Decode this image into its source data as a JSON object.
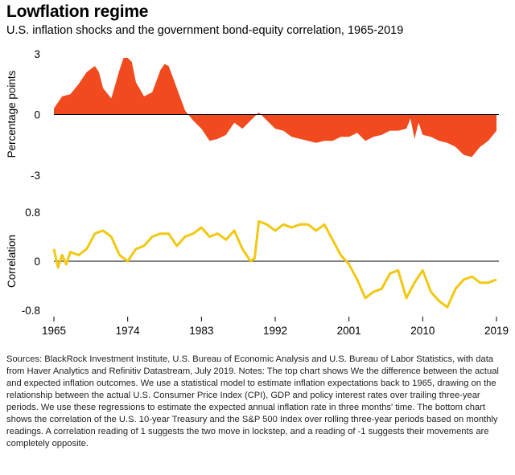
{
  "header": {
    "title": "Lowflation regime",
    "subtitle": "U.S. inflation shocks and the government bond-equity correlation, 1965-2019"
  },
  "notes": "Sources: BlackRock Investment Institute, U.S. Bureau of Economic Analysis and U.S. Bureau of Labor Statistics, with data from Haver Analytics and Refinitiv Datastream, July 2019. Notes: The top  chart shows We the difference between the actual and expected inflation outcomes. We use a statistical model to estimate inflation expectations back to 1965, drawing on the relationship between the actual U.S. Consumer Price Index (CPI), GDP and policy interest rates over trailing three-year periods. We use these regressions to estimate the expected annual inflation rate in three months' time. The bottom chart shows the correlation of the U.S. 10-year Treasury and the S&P 500 Index over rolling three-year periods based on monthly readings. A correlation reading of 1 suggests the two move in lockstep, and a reading of -1 suggests their movements are completely opposite.",
  "colors": {
    "inflation_fill": "#f04a1e",
    "correlation_line": "#f2c811",
    "zero_line": "#000000"
  },
  "chart_data": [
    {
      "type": "area",
      "ylabel": "Percentage points",
      "ylim": [
        -3,
        3
      ],
      "yticks": [
        "3",
        "0",
        "-3"
      ],
      "grid": false,
      "x": [
        1965,
        1966,
        1967,
        1968,
        1969,
        1970,
        1970.5,
        1971,
        1972,
        1973,
        1973.5,
        1974,
        1974.5,
        1975,
        1976,
        1977,
        1978,
        1978.5,
        1979,
        1980,
        1981,
        1982,
        1983,
        1984,
        1985,
        1986,
        1987,
        1988,
        1989,
        1990,
        1991,
        1992,
        1993,
        1994,
        1995,
        1996,
        1997,
        1998,
        1999,
        2000,
        2001,
        2002,
        2003,
        2004,
        2005,
        2006,
        2007,
        2008,
        2008.5,
        2009,
        2009.5,
        2010,
        2011,
        2012,
        2013,
        2014,
        2015,
        2016,
        2017,
        2018,
        2019
      ],
      "values": [
        0.3,
        0.9,
        1.0,
        1.5,
        2.1,
        2.4,
        2.1,
        1.3,
        0.8,
        2.2,
        2.8,
        2.8,
        2.6,
        1.6,
        0.9,
        1.1,
        2.2,
        2.5,
        2.4,
        1.3,
        0.2,
        -0.3,
        -0.7,
        -1.3,
        -1.2,
        -1.0,
        -0.4,
        -0.7,
        -0.3,
        0.1,
        -0.3,
        -0.7,
        -0.8,
        -1.1,
        -1.2,
        -1.3,
        -1.4,
        -1.3,
        -1.3,
        -1.1,
        -1.1,
        -0.9,
        -1.3,
        -1.1,
        -1.0,
        -0.8,
        -0.8,
        -0.7,
        -0.2,
        -1.2,
        -0.4,
        -1.0,
        -1.1,
        -1.3,
        -1.4,
        -1.6,
        -2.0,
        -2.1,
        -1.6,
        -1.3,
        -0.8
      ]
    },
    {
      "type": "line",
      "ylabel": "Correlation",
      "ylim": [
        -0.8,
        0.8
      ],
      "yticks": [
        "0.8",
        "0",
        "-0.8"
      ],
      "grid": false,
      "xticks": [
        "1965",
        "1974",
        "1983",
        "1992",
        "2001",
        "2010",
        "2019"
      ],
      "x": [
        1965,
        1965.5,
        1966,
        1966.5,
        1967,
        1968,
        1969,
        1970,
        1971,
        1972,
        1973,
        1974,
        1975,
        1976,
        1977,
        1978,
        1979,
        1980,
        1981,
        1982,
        1983,
        1984,
        1985,
        1986,
        1987,
        1988,
        1989,
        1989.5,
        1990,
        1991,
        1992,
        1993,
        1994,
        1995,
        1996,
        1997,
        1998,
        1999,
        2000,
        2001,
        2002,
        2003,
        2004,
        2005,
        2006,
        2007,
        2008,
        2009,
        2010,
        2011,
        2012,
        2013,
        2014,
        2015,
        2016,
        2017,
        2018,
        2019
      ],
      "values": [
        0.2,
        -0.1,
        0.1,
        -0.05,
        0.15,
        0.1,
        0.2,
        0.45,
        0.5,
        0.4,
        0.1,
        0.0,
        0.2,
        0.25,
        0.4,
        0.45,
        0.45,
        0.25,
        0.4,
        0.45,
        0.55,
        0.4,
        0.45,
        0.35,
        0.5,
        0.2,
        0.0,
        0.05,
        0.65,
        0.6,
        0.5,
        0.6,
        0.55,
        0.6,
        0.6,
        0.5,
        0.6,
        0.35,
        0.1,
        -0.05,
        -0.3,
        -0.6,
        -0.5,
        -0.45,
        -0.2,
        -0.15,
        -0.6,
        -0.35,
        -0.15,
        -0.5,
        -0.65,
        -0.75,
        -0.45,
        -0.3,
        -0.25,
        -0.35,
        -0.35,
        -0.3
      ]
    }
  ]
}
